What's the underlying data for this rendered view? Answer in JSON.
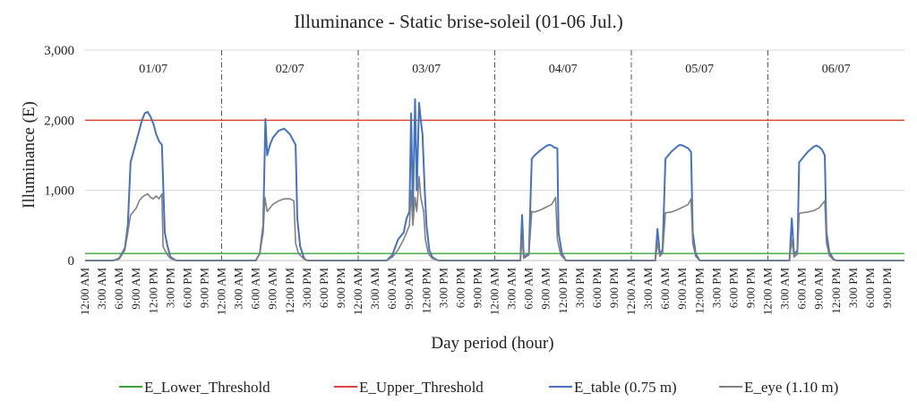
{
  "chart_data": {
    "type": "line",
    "title": "Illuminance - Static brise-soleil (01-06 Jul.)",
    "xlabel": "Day period (hour)",
    "ylabel": "Illuminance (E)",
    "ylim": [
      0,
      3000
    ],
    "y_ticks": [
      "0",
      "1,000",
      "2,000",
      "3,000"
    ],
    "x_tick_labels": [
      "12:00 AM",
      "3:00 AM",
      "6:00 AM",
      "9:00 AM",
      "12:00 PM",
      "3:00 PM",
      "6:00 PM",
      "9:00 PM"
    ],
    "days": [
      "01/07",
      "02/07",
      "03/07",
      "04/07",
      "05/07",
      "06/07"
    ],
    "hours_per_day": 24,
    "legend_position": "bottom",
    "grid": true,
    "series": [
      {
        "name": "E_Lower_Threshold",
        "color": "#3aa43a",
        "constant": 100
      },
      {
        "name": "E_Upper_Threshold",
        "color": "#e0453c",
        "constant": 2000
      },
      {
        "name": "E_table (0.75 m)",
        "color": "#4472c4",
        "days": [
          [
            [
              0,
              0
            ],
            [
              5,
              0
            ],
            [
              6,
              30
            ],
            [
              7,
              180
            ],
            [
              7.5,
              500
            ],
            [
              8,
              1400
            ],
            [
              8.5,
              1550
            ],
            [
              9,
              1700
            ],
            [
              9.5,
              1850
            ],
            [
              10,
              2000
            ],
            [
              10.5,
              2100
            ],
            [
              11,
              2120
            ],
            [
              11.5,
              2050
            ],
            [
              12,
              1950
            ],
            [
              12.5,
              1800
            ],
            [
              13,
              1700
            ],
            [
              13.5,
              1650
            ],
            [
              14,
              400
            ],
            [
              14.5,
              200
            ],
            [
              15,
              50
            ],
            [
              16,
              0
            ],
            [
              24,
              0
            ]
          ],
          [
            [
              0,
              0
            ],
            [
              6,
              0
            ],
            [
              6.7,
              100
            ],
            [
              7.3,
              500
            ],
            [
              7.7,
              2020
            ],
            [
              8,
              1500
            ],
            [
              8.5,
              1650
            ],
            [
              9,
              1750
            ],
            [
              10,
              1850
            ],
            [
              11,
              1880
            ],
            [
              12,
              1800
            ],
            [
              13,
              1650
            ],
            [
              13.3,
              600
            ],
            [
              13.8,
              200
            ],
            [
              14.5,
              30
            ],
            [
              15,
              0
            ],
            [
              24,
              0
            ]
          ],
          [
            [
              0,
              0
            ],
            [
              5,
              0
            ],
            [
              6,
              80
            ],
            [
              7,
              300
            ],
            [
              8,
              400
            ],
            [
              8.5,
              600
            ],
            [
              9,
              700
            ],
            [
              9.3,
              2100
            ],
            [
              9.6,
              700
            ],
            [
              10,
              2300
            ],
            [
              10.3,
              1000
            ],
            [
              10.7,
              2250
            ],
            [
              11,
              2000
            ],
            [
              11.3,
              1800
            ],
            [
              11.7,
              1000
            ],
            [
              12,
              500
            ],
            [
              12.5,
              150
            ],
            [
              13,
              50
            ],
            [
              14,
              0
            ],
            [
              24,
              0
            ]
          ],
          [
            [
              0,
              0
            ],
            [
              4.5,
              0
            ],
            [
              4.8,
              650
            ],
            [
              5.1,
              50
            ],
            [
              6,
              100
            ],
            [
              6.5,
              1450
            ],
            [
              7,
              1500
            ],
            [
              8,
              1570
            ],
            [
              9,
              1630
            ],
            [
              9.5,
              1650
            ],
            [
              10,
              1640
            ],
            [
              10.5,
              1610
            ],
            [
              11,
              1600
            ],
            [
              11.2,
              400
            ],
            [
              11.8,
              100
            ],
            [
              12.5,
              0
            ],
            [
              24,
              0
            ]
          ],
          [
            [
              0,
              0
            ],
            [
              4.2,
              0
            ],
            [
              4.6,
              450
            ],
            [
              5,
              100
            ],
            [
              5.5,
              150
            ],
            [
              6,
              1450
            ],
            [
              7,
              1550
            ],
            [
              8,
              1620
            ],
            [
              8.5,
              1650
            ],
            [
              9,
              1640
            ],
            [
              10,
              1600
            ],
            [
              10.5,
              1550
            ],
            [
              10.8,
              400
            ],
            [
              11.3,
              100
            ],
            [
              12,
              0
            ],
            [
              24,
              0
            ]
          ],
          [
            [
              0,
              0
            ],
            [
              3.8,
              0
            ],
            [
              4.2,
              600
            ],
            [
              4.6,
              80
            ],
            [
              5.2,
              150
            ],
            [
              5.5,
              1400
            ],
            [
              6,
              1450
            ],
            [
              7,
              1550
            ],
            [
              8,
              1620
            ],
            [
              8.5,
              1640
            ],
            [
              9,
              1620
            ],
            [
              9.5,
              1580
            ],
            [
              10,
              1500
            ],
            [
              10.3,
              400
            ],
            [
              10.8,
              120
            ],
            [
              11.5,
              20
            ],
            [
              12,
              0
            ],
            [
              24,
              0
            ]
          ]
        ]
      },
      {
        "name": "E_eye (1.10 m)",
        "color": "#808080",
        "days": [
          [
            [
              0,
              0
            ],
            [
              5,
              0
            ],
            [
              6,
              20
            ],
            [
              7,
              150
            ],
            [
              7.5,
              400
            ],
            [
              8,
              650
            ],
            [
              8.5,
              700
            ],
            [
              9,
              750
            ],
            [
              9.5,
              850
            ],
            [
              10,
              900
            ],
            [
              10.5,
              930
            ],
            [
              11,
              950
            ],
            [
              11.5,
              900
            ],
            [
              12,
              880
            ],
            [
              12.5,
              920
            ],
            [
              13,
              880
            ],
            [
              13.5,
              950
            ],
            [
              13.7,
              200
            ],
            [
              14,
              150
            ],
            [
              14.5,
              80
            ],
            [
              15,
              30
            ],
            [
              16,
              0
            ],
            [
              24,
              0
            ]
          ],
          [
            [
              0,
              0
            ],
            [
              6,
              0
            ],
            [
              6.7,
              100
            ],
            [
              7.3,
              400
            ],
            [
              7.6,
              900
            ],
            [
              8,
              700
            ],
            [
              9,
              800
            ],
            [
              10,
              850
            ],
            [
              11,
              880
            ],
            [
              12,
              880
            ],
            [
              12.7,
              850
            ],
            [
              13,
              250
            ],
            [
              13.5,
              100
            ],
            [
              14.5,
              20
            ],
            [
              15,
              0
            ],
            [
              24,
              0
            ]
          ],
          [
            [
              0,
              0
            ],
            [
              5,
              0
            ],
            [
              6,
              50
            ],
            [
              7,
              150
            ],
            [
              8,
              300
            ],
            [
              8.5,
              400
            ],
            [
              9,
              500
            ],
            [
              9.3,
              1000
            ],
            [
              9.6,
              500
            ],
            [
              10,
              900
            ],
            [
              10.3,
              700
            ],
            [
              10.7,
              1200
            ],
            [
              11,
              900
            ],
            [
              11.5,
              700
            ],
            [
              11.8,
              300
            ],
            [
              12.3,
              100
            ],
            [
              13,
              30
            ],
            [
              14,
              0
            ],
            [
              24,
              0
            ]
          ],
          [
            [
              0,
              0
            ],
            [
              4.5,
              0
            ],
            [
              4.8,
              300
            ],
            [
              5.1,
              30
            ],
            [
              6,
              80
            ],
            [
              6.5,
              700
            ],
            [
              7,
              690
            ],
            [
              8,
              720
            ],
            [
              9,
              760
            ],
            [
              10,
              800
            ],
            [
              10.7,
              900
            ],
            [
              11,
              300
            ],
            [
              11.6,
              80
            ],
            [
              12.5,
              0
            ],
            [
              24,
              0
            ]
          ],
          [
            [
              0,
              0
            ],
            [
              4.2,
              0
            ],
            [
              4.6,
              250
            ],
            [
              5,
              60
            ],
            [
              5.5,
              100
            ],
            [
              6,
              680
            ],
            [
              7,
              690
            ],
            [
              8,
              720
            ],
            [
              9,
              760
            ],
            [
              10,
              800
            ],
            [
              10.5,
              880
            ],
            [
              10.8,
              250
            ],
            [
              11.3,
              60
            ],
            [
              12,
              0
            ],
            [
              24,
              0
            ]
          ],
          [
            [
              0,
              0
            ],
            [
              3.8,
              0
            ],
            [
              4.2,
              300
            ],
            [
              4.6,
              50
            ],
            [
              5.2,
              90
            ],
            [
              5.5,
              670
            ],
            [
              6,
              680
            ],
            [
              7,
              690
            ],
            [
              8,
              710
            ],
            [
              9,
              750
            ],
            [
              10,
              850
            ],
            [
              10.3,
              250
            ],
            [
              10.8,
              70
            ],
            [
              11.5,
              10
            ],
            [
              12,
              0
            ],
            [
              24,
              0
            ]
          ]
        ]
      }
    ]
  }
}
